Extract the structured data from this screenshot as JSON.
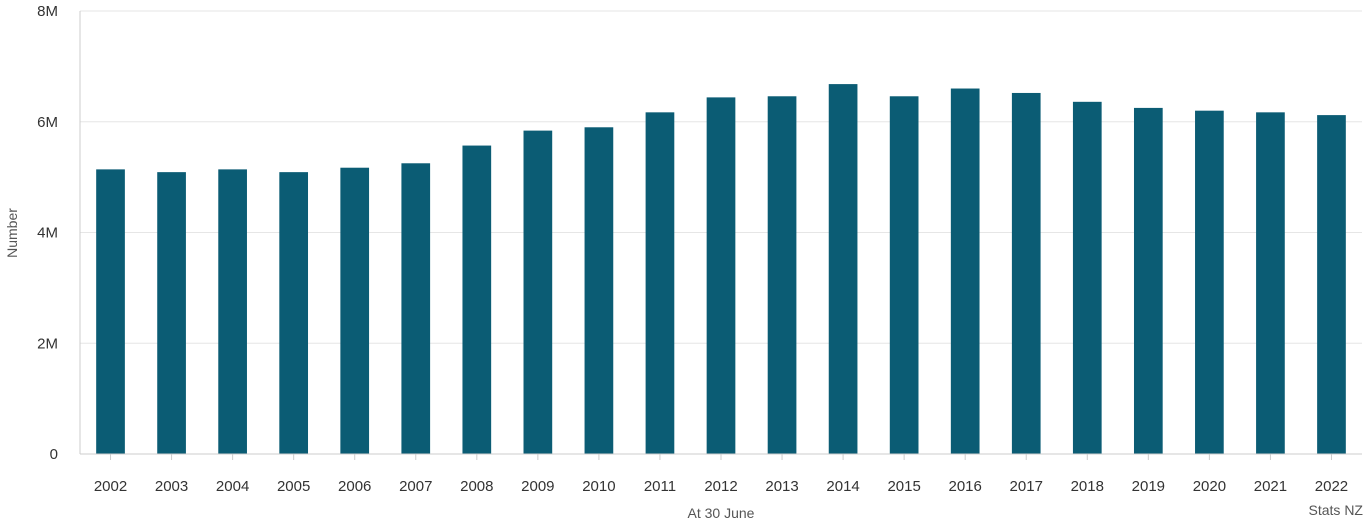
{
  "chart_data": {
    "type": "bar",
    "title": "",
    "xlabel": "At 30 June",
    "ylabel": "Number",
    "credit": "Stats NZ",
    "categories": [
      "2002",
      "2003",
      "2004",
      "2005",
      "2006",
      "2007",
      "2008",
      "2009",
      "2010",
      "2011",
      "2012",
      "2013",
      "2014",
      "2015",
      "2016",
      "2017",
      "2018",
      "2019",
      "2020",
      "2021",
      "2022"
    ],
    "values": [
      5140000,
      5090000,
      5140000,
      5090000,
      5170000,
      5250000,
      5570000,
      5840000,
      5900000,
      6170000,
      6440000,
      6460000,
      6680000,
      6460000,
      6600000,
      6520000,
      6360000,
      6250000,
      6200000,
      6170000,
      6120000
    ],
    "ylim": [
      0,
      8000000
    ],
    "yticks": [
      0,
      2000000,
      4000000,
      6000000,
      8000000
    ],
    "ytick_labels": [
      "0",
      "2M",
      "4M",
      "6M",
      "8M"
    ],
    "grid": true,
    "bar_color": "#0b5c74",
    "grid_color": "#e6e6e6",
    "axis_color": "#cccccc"
  }
}
